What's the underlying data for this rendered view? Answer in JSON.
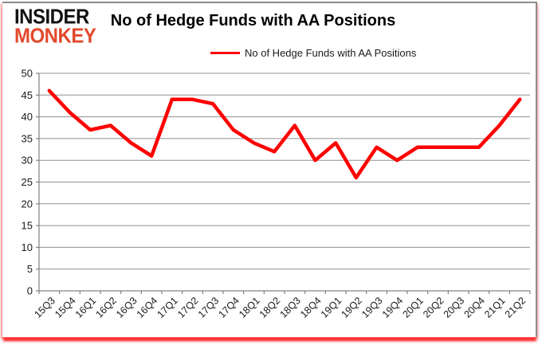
{
  "logo": {
    "line1": "INSIDER",
    "line2": "MONKEY"
  },
  "header": {
    "title": "No of Hedge Funds with AA Positions"
  },
  "legend": {
    "label": "No of Hedge Funds with AA Positions",
    "line_color": "#FE0000"
  },
  "colors": {
    "series_line": "#FE0000",
    "gridline": "#909090",
    "axis": "#808080",
    "tick_label": "#1A1A1A",
    "card_border": "#8C8C8C",
    "logo_black": "#111111",
    "logo_red": "#E2492C",
    "glow_red": "#FF0000",
    "background": "#FFFFFF"
  },
  "chart_data": {
    "type": "line",
    "title": "No of Hedge Funds with AA Positions",
    "categories": [
      "15Q3",
      "15Q4",
      "16Q1",
      "16Q2",
      "16Q3",
      "16Q4",
      "17Q1",
      "17Q2",
      "17Q3",
      "17Q4",
      "18Q1",
      "18Q2",
      "18Q3",
      "18Q4",
      "19Q1",
      "19Q2",
      "19Q3",
      "19Q4",
      "20Q1",
      "20Q2",
      "20Q3",
      "20Q4",
      "21Q1",
      "21Q2"
    ],
    "series": [
      {
        "name": "No of Hedge Funds with AA Positions",
        "color": "#FE0000",
        "values": [
          46,
          41,
          37,
          38,
          34,
          31,
          44,
          44,
          43,
          37,
          34,
          32,
          38,
          30,
          34,
          26,
          33,
          30,
          33,
          33,
          33,
          33,
          38,
          44
        ]
      }
    ],
    "xlabel": "",
    "ylabel": "",
    "ylim": [
      0,
      50
    ],
    "yticks": [
      0,
      5,
      10,
      15,
      20,
      25,
      30,
      35,
      40,
      45,
      50
    ],
    "grid": true,
    "legend_position": "top-center"
  }
}
